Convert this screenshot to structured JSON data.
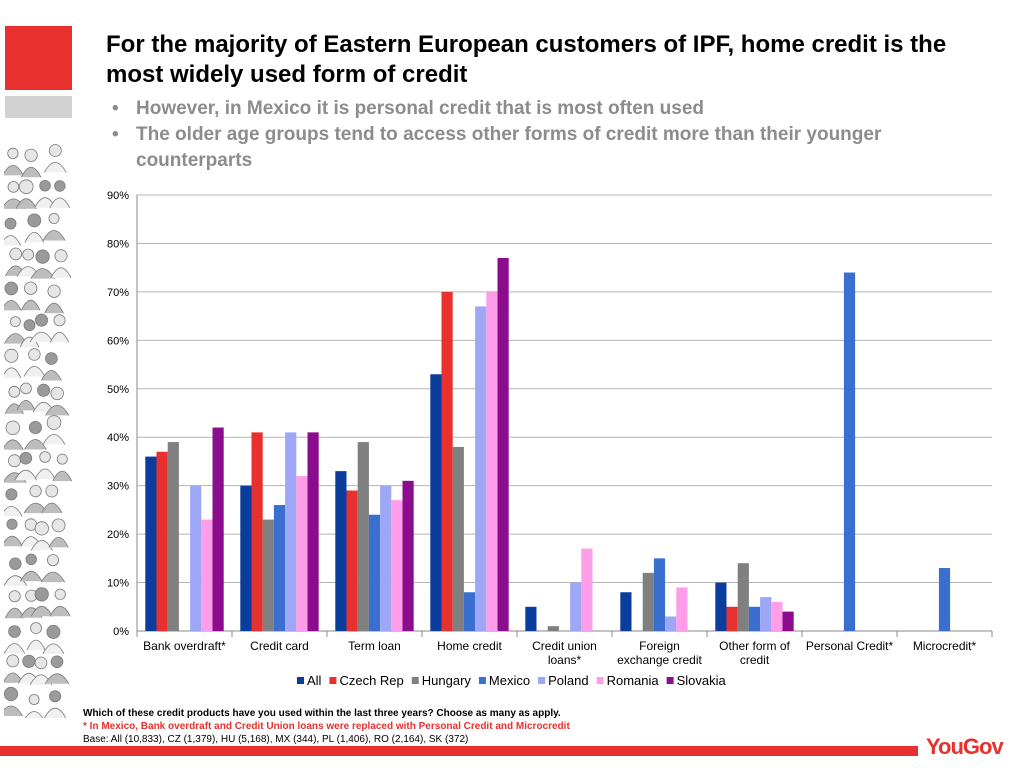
{
  "header": {
    "title": "For the majority of Eastern European customers of IPF, home credit is the most widely used form of credit",
    "bullets": [
      "However, in Mexico it is personal credit that is most often used",
      "The older age groups tend to access other forms of credit more than their younger counterparts"
    ],
    "bullet_glyph": "•"
  },
  "chart_data": {
    "type": "bar",
    "title": "",
    "xlabel": "",
    "ylabel": "",
    "ylim": [
      0,
      90
    ],
    "yticks": [
      0,
      10,
      20,
      30,
      40,
      50,
      60,
      70,
      80,
      90
    ],
    "ytick_suffix": "%",
    "grid": true,
    "legend_position": "bottom",
    "categories": [
      [
        "Bank overdraft*"
      ],
      [
        "Credit card"
      ],
      [
        "Term loan"
      ],
      [
        "Home credit"
      ],
      [
        "Credit union",
        "loans*"
      ],
      [
        "Foreign",
        "exchange credit"
      ],
      [
        "Other form of",
        "credit"
      ],
      [
        "Personal Credit*"
      ],
      [
        "Microcredit*"
      ]
    ],
    "series": [
      {
        "name": "All",
        "color": "#0b3d9c",
        "values": [
          36,
          30,
          33,
          53,
          5,
          8,
          10,
          null,
          null
        ]
      },
      {
        "name": "Czech Rep",
        "color": "#e8312f",
        "values": [
          37,
          41,
          29,
          70,
          null,
          null,
          5,
          null,
          null
        ]
      },
      {
        "name": "Hungary",
        "color": "#808080",
        "values": [
          39,
          23,
          39,
          38,
          1,
          12,
          14,
          null,
          null
        ]
      },
      {
        "name": "Mexico",
        "color": "#3a6fd0",
        "values": [
          null,
          26,
          24,
          8,
          null,
          15,
          5,
          74,
          13
        ]
      },
      {
        "name": "Poland",
        "color": "#9ea7f5",
        "values": [
          30,
          41,
          30,
          67,
          10,
          3,
          7,
          null,
          null
        ]
      },
      {
        "name": "Romania",
        "color": "#ff9ee8",
        "values": [
          23,
          32,
          27,
          70,
          17,
          9,
          6,
          null,
          null
        ]
      },
      {
        "name": "Slovakia",
        "color": "#8b0d8e",
        "values": [
          42,
          41,
          31,
          77,
          null,
          null,
          4,
          null,
          null
        ]
      }
    ]
  },
  "footnotes": {
    "question": "Which of these credit products have you used within the last three years? Choose as many as apply.",
    "note": "* In Mexico, Bank overdraft and Credit Union loans were replaced with Personal Credit and Microcredit",
    "base": "Base: All (10,833), CZ (1,379), HU (5,168), MX (344), PL (1,406), RO (2,164), SK (372)"
  },
  "brand": {
    "logo": "YouGov",
    "accent": "#e8312f"
  }
}
